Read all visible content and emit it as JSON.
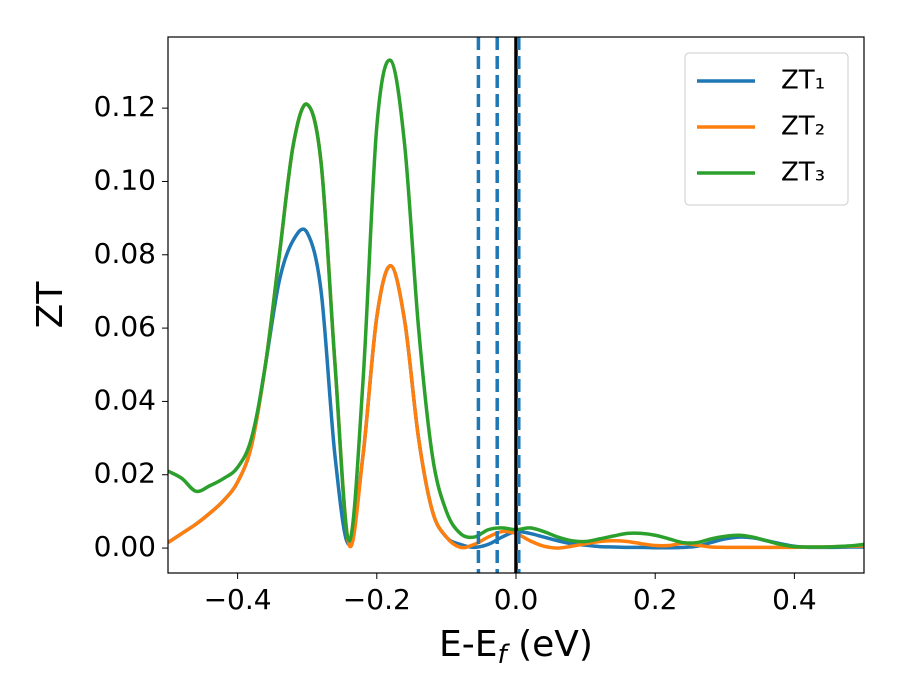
{
  "chart_data": {
    "type": "line",
    "xlabel": [
      "E-E",
      "f",
      " (eV)"
    ],
    "ylabel": "ZT",
    "xlim": [
      -0.5,
      0.5
    ],
    "ylim": [
      -0.0068,
      0.1394
    ],
    "xticks": [
      {
        "value": -0.4,
        "label": "−0.4"
      },
      {
        "value": -0.2,
        "label": "−0.2"
      },
      {
        "value": 0,
        "label": "0.0"
      },
      0.2,
      0.4
    ],
    "yticks": [
      {
        "value": 0,
        "label": "0.00"
      },
      {
        "value": 0.02,
        "label": "0.02"
      },
      {
        "value": 0.04,
        "label": "0.04"
      },
      {
        "value": 0.06,
        "label": "0.06"
      },
      {
        "value": 0.08,
        "label": "0.08"
      },
      {
        "value": 0.1,
        "label": "0.10"
      },
      {
        "value": 0.12,
        "label": "0.12"
      }
    ],
    "legend": "upper right",
    "x": [
      -0.5,
      -0.48,
      -0.46,
      -0.44,
      -0.42,
      -0.4,
      -0.38,
      -0.36,
      -0.34,
      -0.32,
      -0.3,
      -0.28,
      -0.26,
      -0.24,
      -0.22,
      -0.2,
      -0.18,
      -0.16,
      -0.14,
      -0.12,
      -0.1,
      -0.08,
      -0.06,
      -0.04,
      -0.02,
      0,
      0.02,
      0.04,
      0.06,
      0.08,
      0.1,
      0.12,
      0.14,
      0.16,
      0.18,
      0.2,
      0.22,
      0.24,
      0.26,
      0.28,
      0.3,
      0.32,
      0.34,
      0.36,
      0.38,
      0.4,
      0.42,
      0.44,
      0.46,
      0.48,
      0.5
    ],
    "series": [
      {
        "name": "ZT₁",
        "color": "#1f77b4",
        "values": [
          0.0015,
          0.004,
          0.0065,
          0.0095,
          0.013,
          0.018,
          0.028,
          0.05,
          0.073,
          0.084,
          0.086,
          0.07,
          0.025,
          0.001,
          0.025,
          0.063,
          0.077,
          0.062,
          0.03,
          0.01,
          0.003,
          0.001,
          0.0002,
          0.001,
          0.003,
          0.0045,
          0.004,
          0.003,
          0.002,
          0.0012,
          0.0008,
          0.0004,
          0.0003,
          0.0002,
          0.0002,
          0.0001,
          0.0001,
          0.0002,
          0.0005,
          0.0015,
          0.0025,
          0.003,
          0.0028,
          0.002,
          0.0012,
          0.0005,
          0.0002,
          0.0002,
          0.0002,
          0.0003,
          0.0003
        ]
      },
      {
        "name": "ZT₂",
        "color": "#ff7f0e",
        "values": [
          0.0015,
          0.004,
          0.0065,
          0.0095,
          0.013,
          0.018,
          0.028,
          0.05,
          0.08,
          0.11,
          0.121,
          0.105,
          0.05,
          0.001,
          0.025,
          0.063,
          0.077,
          0.062,
          0.03,
          0.01,
          0.003,
          0.0002,
          0.001,
          0.003,
          0.0045,
          0.004,
          0.002,
          0.0005,
          0,
          0.0005,
          0.0012,
          0.0018,
          0.002,
          0.0018,
          0.0012,
          0.0007,
          0.0007,
          0.0013,
          0.0008,
          0.0003,
          0.0002,
          0.0002,
          0.0002,
          0.0002,
          0.0002,
          0.0002,
          0.0003,
          0.0003,
          0.0004,
          0.0005,
          0.0006
        ]
      },
      {
        "name": "ZT₃",
        "color": "#2ca02c",
        "values": [
          0.021,
          0.019,
          0.0155,
          0.017,
          0.019,
          0.022,
          0.03,
          0.05,
          0.08,
          0.11,
          0.121,
          0.105,
          0.05,
          0.002,
          0.045,
          0.115,
          0.133,
          0.11,
          0.06,
          0.025,
          0.01,
          0.004,
          0.003,
          0.005,
          0.0055,
          0.005,
          0.0055,
          0.0045,
          0.003,
          0.002,
          0.0018,
          0.0025,
          0.0033,
          0.004,
          0.004,
          0.0035,
          0.0025,
          0.0015,
          0.0015,
          0.0025,
          0.0032,
          0.0035,
          0.003,
          0.002,
          0.001,
          0.0004,
          0.0003,
          0.0003,
          0.0004,
          0.0006,
          0.001
        ]
      }
    ],
    "vlines": [
      {
        "x": -0.054,
        "color": "#1f77b4",
        "dashed": true
      },
      {
        "x": -0.027,
        "color": "#1f77b4",
        "dashed": true
      },
      {
        "x": 0,
        "color": "#000000",
        "dashed": false
      },
      {
        "x": 0.004,
        "color": "#1f77b4",
        "dashed": true
      }
    ]
  }
}
